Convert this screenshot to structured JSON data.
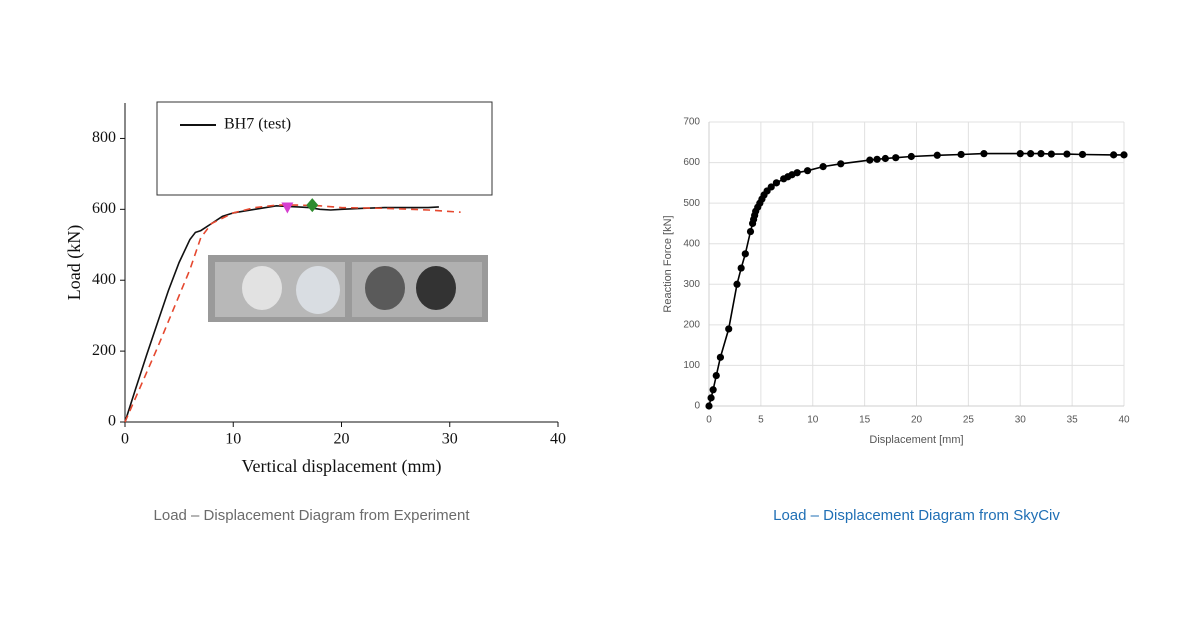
{
  "chart_data": [
    {
      "type": "line",
      "title": "Load – Displacement Diagram from Experiment",
      "xlabel": "Vertical displacement (mm)",
      "ylabel": "Load (kN)",
      "xlim": [
        0,
        40
      ],
      "xticks": [
        0,
        10,
        20,
        30,
        40
      ],
      "ylim": [
        0,
        900
      ],
      "yticks": [
        0,
        200,
        400,
        600,
        800
      ],
      "grid": false,
      "markers": false,
      "series": [
        {
          "name": "BH7 (test)",
          "color": "#111111",
          "x": [
            0,
            1,
            2,
            3,
            4,
            5,
            6,
            6.5,
            7,
            8,
            9,
            10,
            11,
            12,
            13,
            14,
            15,
            16,
            17,
            18,
            19,
            20,
            22,
            24,
            26,
            28,
            29
          ],
          "values": [
            0,
            95,
            190,
            280,
            370,
            450,
            515,
            535,
            540,
            560,
            580,
            590,
            595,
            600,
            605,
            610,
            608,
            607,
            605,
            600,
            598,
            600,
            603,
            605,
            605,
            605,
            607
          ]
        },
        {
          "color": "#e5482f",
          "dashed": true,
          "x": [
            0,
            3,
            6,
            7,
            8,
            10,
            12,
            14,
            16,
            18,
            20,
            24,
            28,
            31
          ],
          "values": [
            0,
            210,
            430,
            520,
            560,
            590,
            605,
            612,
            612,
            610,
            605,
            603,
            598,
            592
          ]
        }
      ],
      "points": [
        {
          "x": 15,
          "value": 605,
          "color": "#d63fd0",
          "shape": "triangle"
        },
        {
          "x": 17.3,
          "value": 612,
          "color": "#2e8b2e",
          "shape": "diamond"
        }
      ]
    },
    {
      "type": "line",
      "title": "Load – Displacement Diagram from SkyCiv",
      "xlabel": "Displacement [mm]",
      "ylabel": "Reaction Force [kN]",
      "xlim": [
        0,
        40
      ],
      "xticks": [
        0,
        5,
        10,
        15,
        20,
        25,
        30,
        35,
        40
      ],
      "ylim": [
        0,
        700
      ],
      "yticks": [
        0,
        100,
        200,
        300,
        400,
        500,
        600,
        700
      ],
      "grid": true,
      "markers": true,
      "series": [
        {
          "color": "#000000",
          "x": [
            0,
            0.2,
            0.4,
            0.7,
            1.1,
            1.9,
            2.7,
            3.1,
            3.5,
            4.0,
            4.2,
            4.3,
            4.4,
            4.5,
            4.7,
            4.9,
            5.1,
            5.3,
            5.6,
            6.0,
            6.5,
            7.2,
            7.6,
            8.0,
            8.5,
            9.5,
            11,
            12.7,
            15.5,
            16.2,
            17,
            18,
            19.5,
            22,
            24.3,
            26.5,
            30,
            31,
            32,
            33,
            34.5,
            36,
            39,
            40
          ],
          "values": [
            0,
            20,
            40,
            75,
            120,
            190,
            300,
            340,
            375,
            430,
            450,
            460,
            470,
            480,
            490,
            500,
            510,
            520,
            530,
            540,
            550,
            560,
            565,
            570,
            575,
            580,
            590,
            597,
            606,
            608,
            610,
            612,
            615,
            618,
            620,
            622,
            622,
            622,
            622,
            621,
            621,
            620,
            619,
            619
          ]
        }
      ]
    }
  ]
}
